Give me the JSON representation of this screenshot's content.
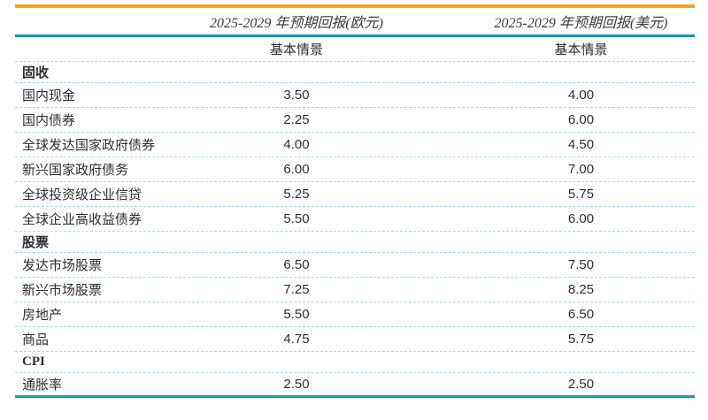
{
  "colors": {
    "accent_orange": "#F7A11C",
    "accent_teal": "#1598B9",
    "row_line": "#A9DCEE",
    "header_text": "#3B3B3B",
    "body_text": "#2E2E2E"
  },
  "table": {
    "column_headers": [
      "2025-2029 年预期回报(欧元)",
      "2025-2029 年预期回报(美元)"
    ],
    "sub_headers": [
      "基本情景",
      "基本情景"
    ],
    "sections": [
      {
        "title": "固收",
        "rows": [
          {
            "label": "国内现金",
            "eur": "3.50",
            "usd": "4.00"
          },
          {
            "label": "国内债券",
            "eur": "2.25",
            "usd": "6.00"
          },
          {
            "label": "全球发达国家政府债券",
            "eur": "4.00",
            "usd": "4.50"
          },
          {
            "label": "新兴国家政府债务",
            "eur": "6.00",
            "usd": "7.00"
          },
          {
            "label": "全球投资级企业信贷",
            "eur": "5.25",
            "usd": "5.75"
          },
          {
            "label": "全球企业高收益债券",
            "eur": "5.50",
            "usd": "6.00"
          }
        ]
      },
      {
        "title": "股票",
        "rows": [
          {
            "label": "发达市场股票",
            "eur": "6.50",
            "usd": "7.50"
          },
          {
            "label": "新兴市场股票",
            "eur": "7.25",
            "usd": "8.25"
          },
          {
            "label": "房地产",
            "eur": "5.50",
            "usd": "6.50"
          },
          {
            "label": "商品",
            "eur": "4.75",
            "usd": "5.75"
          }
        ]
      },
      {
        "title": "CPI",
        "rows": [
          {
            "label": "通胀率",
            "eur": "2.50",
            "usd": "2.50"
          }
        ]
      }
    ]
  },
  "chart_data": {
    "type": "table",
    "column_groups": [
      "2025-2029 年预期回报(欧元)",
      "2025-2029 年预期回报(美元)"
    ],
    "sub_columns": [
      "基本情景",
      "基本情景"
    ],
    "sections": [
      {
        "name": "固收",
        "rows": [
          [
            "国内现金",
            3.5,
            4.0
          ],
          [
            "国内债券",
            2.25,
            6.0
          ],
          [
            "全球发达国家政府债券",
            4.0,
            4.5
          ],
          [
            "新兴国家政府债务",
            6.0,
            7.0
          ],
          [
            "全球投资级企业信贷",
            5.25,
            5.75
          ],
          [
            "全球企业高收益债券",
            5.5,
            6.0
          ]
        ]
      },
      {
        "name": "股票",
        "rows": [
          [
            "发达市场股票",
            6.5,
            7.5
          ],
          [
            "新兴市场股票",
            7.25,
            8.25
          ],
          [
            "房地产",
            5.5,
            6.5
          ],
          [
            "商品",
            4.75,
            5.75
          ]
        ]
      },
      {
        "name": "CPI",
        "rows": [
          [
            "通胀率",
            2.5,
            2.5
          ]
        ]
      }
    ]
  }
}
